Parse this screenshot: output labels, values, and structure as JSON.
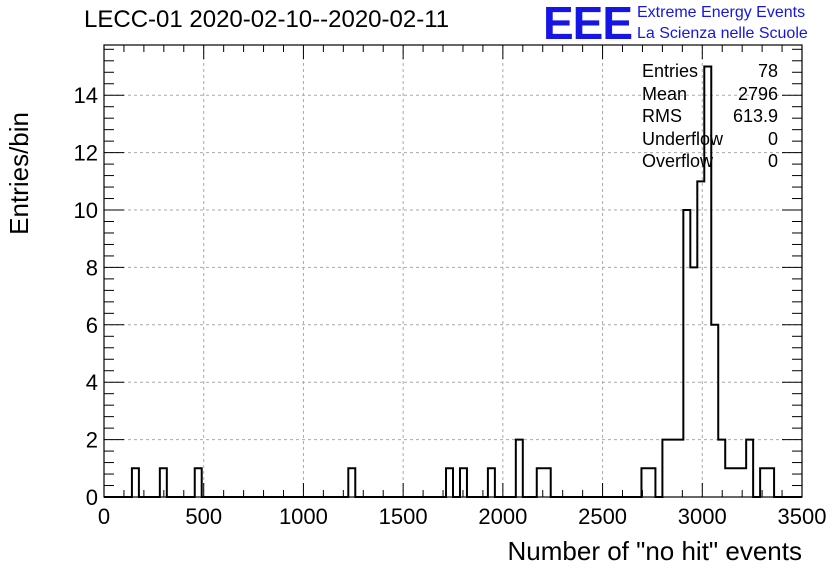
{
  "header": {
    "title": "LECC-01 2020-02-10--2020-02-11",
    "logo_mark": "EEE",
    "logo_line1": "Extreme Energy Events",
    "logo_line2": "La Scienza nelle Scuole",
    "logo_color": "#1515e6"
  },
  "stats_box": {
    "rows": [
      {
        "label": "Entries",
        "value": "78"
      },
      {
        "label": "Mean",
        "value": "2796"
      },
      {
        "label": "RMS",
        "value": "613.9"
      },
      {
        "label": "Underflow",
        "value": "0"
      },
      {
        "label": "Overflow",
        "value": "0"
      }
    ]
  },
  "chart_data": {
    "type": "bar",
    "title": "LECC-01 2020-02-10--2020-02-11",
    "xlabel": "Number of \"no hit\" events",
    "ylabel": "Entries/bin",
    "xlim": [
      0,
      3500
    ],
    "ylim": [
      0,
      15.75
    ],
    "bin_width": 35,
    "grid": true,
    "x_ticks": [
      0,
      500,
      1000,
      1500,
      2000,
      2500,
      3000,
      3500
    ],
    "y_ticks": [
      0,
      2,
      4,
      6,
      8,
      10,
      12,
      14
    ],
    "bins": [
      {
        "x": 140,
        "y": 1
      },
      {
        "x": 280,
        "y": 1
      },
      {
        "x": 455,
        "y": 1
      },
      {
        "x": 1225,
        "y": 1
      },
      {
        "x": 1715,
        "y": 1
      },
      {
        "x": 1785,
        "y": 1
      },
      {
        "x": 1925,
        "y": 1
      },
      {
        "x": 2065,
        "y": 2
      },
      {
        "x": 2170,
        "y": 1
      },
      {
        "x": 2205,
        "y": 1
      },
      {
        "x": 2695,
        "y": 1
      },
      {
        "x": 2730,
        "y": 1
      },
      {
        "x": 2800,
        "y": 2
      },
      {
        "x": 2835,
        "y": 2
      },
      {
        "x": 2870,
        "y": 2
      },
      {
        "x": 2905,
        "y": 10
      },
      {
        "x": 2940,
        "y": 8
      },
      {
        "x": 2975,
        "y": 11
      },
      {
        "x": 3010,
        "y": 15
      },
      {
        "x": 3045,
        "y": 6
      },
      {
        "x": 3080,
        "y": 2
      },
      {
        "x": 3115,
        "y": 1
      },
      {
        "x": 3150,
        "y": 1
      },
      {
        "x": 3185,
        "y": 1
      },
      {
        "x": 3220,
        "y": 2
      },
      {
        "x": 3290,
        "y": 1
      },
      {
        "x": 3325,
        "y": 1
      }
    ]
  }
}
